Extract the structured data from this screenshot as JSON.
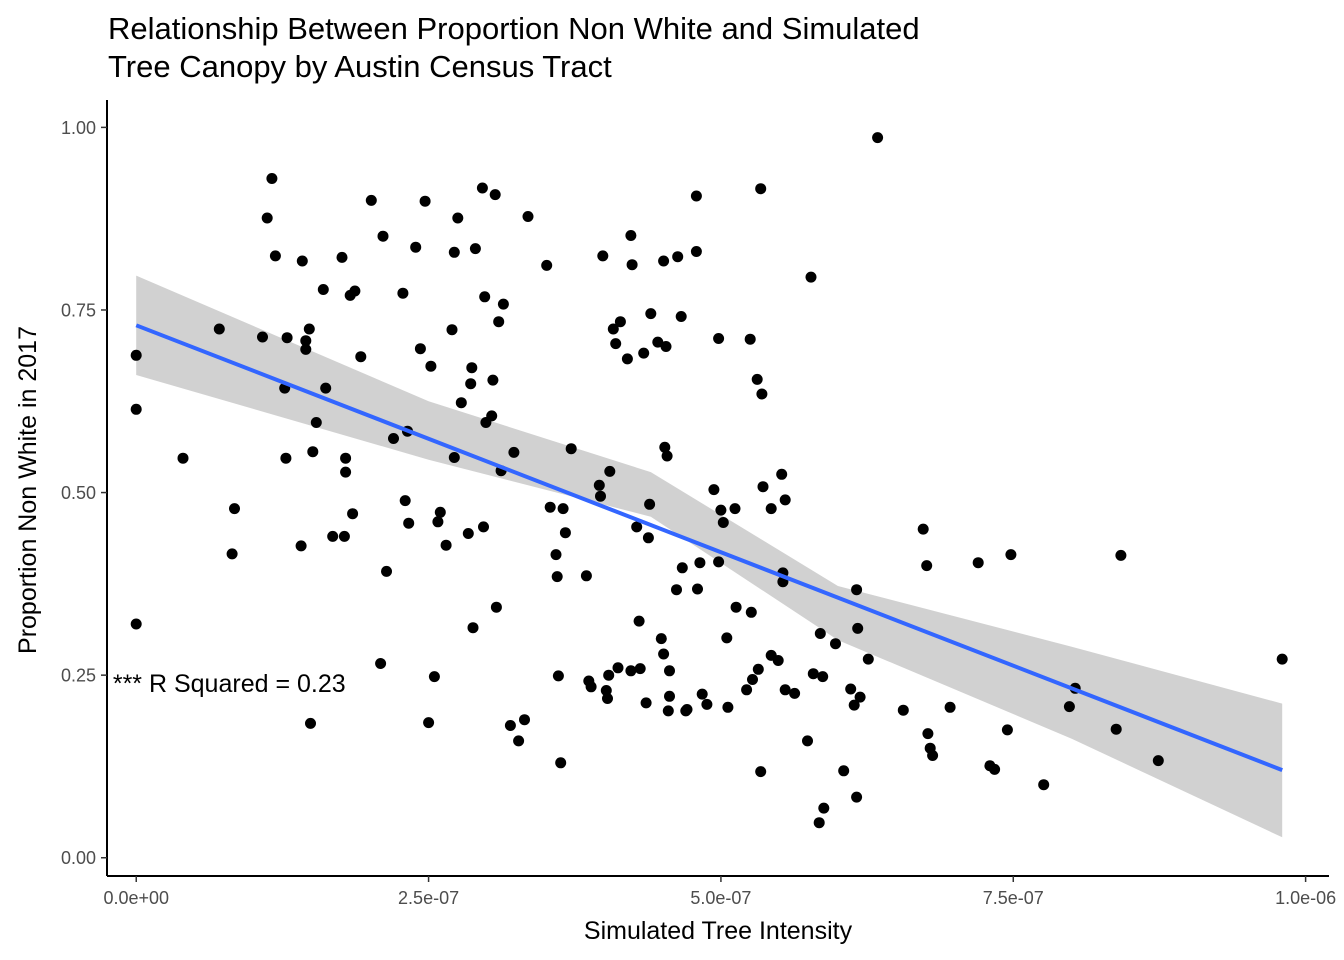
{
  "chart_data": {
    "type": "scatter",
    "title": "Relationship Between Proportion Non White and Simulated Tree Canopy by Austin Census Tract",
    "title_lines": [
      "Relationship Between Proportion Non White and Simulated",
      "Tree Canopy by Austin Census Tract"
    ],
    "xlabel": "Simulated Tree Intensity",
    "ylabel": "Proportion Non White in 2017",
    "xlim": [
      -2.5e-08,
      1.02e-06
    ],
    "ylim": [
      -0.025,
      1.0375
    ],
    "x_ticks": [
      {
        "value": 0,
        "label": "0.0e+00"
      },
      {
        "value": 2.5e-07,
        "label": "2.5e-07"
      },
      {
        "value": 5e-07,
        "label": "5.0e-07"
      },
      {
        "value": 7.5e-07,
        "label": "7.5e-07"
      },
      {
        "value": 1e-06,
        "label": "1.0e-06"
      }
    ],
    "y_ticks": [
      {
        "value": 0,
        "label": "0.00"
      },
      {
        "value": 0.25,
        "label": "0.25"
      },
      {
        "value": 0.5,
        "label": "0.50"
      },
      {
        "value": 0.75,
        "label": "0.75"
      },
      {
        "value": 1.0,
        "label": "1.00"
      }
    ],
    "grid": false,
    "annotation": {
      "text": "*** R Squared = 0.23",
      "x": -2e-08,
      "y": 0.239
    },
    "point_color": "#000000",
    "fit_line": {
      "color": "#3366FF",
      "x": [
        0,
        9.8e-07
      ],
      "y": [
        0.729,
        0.12
      ]
    },
    "confidence_band": {
      "color": "#CCCCCC",
      "x": [
        0,
        2.5e-07,
        4.4e-07,
        6e-07,
        8e-07,
        9.8e-07
      ],
      "upper": [
        0.797,
        0.625,
        0.528,
        0.372,
        0.289,
        0.211
      ],
      "lower": [
        0.661,
        0.545,
        0.467,
        0.298,
        0.163,
        0.028
      ]
    },
    "points": [
      [
        0,
        0.688
      ],
      [
        0,
        0.614
      ],
      [
        0,
        0.32
      ],
      [
        4e-08,
        0.547
      ],
      [
        7.1e-08,
        0.724
      ],
      [
        8.2e-08,
        0.416
      ],
      [
        8.4e-08,
        0.478
      ],
      [
        1.08e-07,
        0.713
      ],
      [
        1.12e-07,
        0.876
      ],
      [
        1.16e-07,
        0.93
      ],
      [
        1.19e-07,
        0.824
      ],
      [
        1.27e-07,
        0.643
      ],
      [
        1.28e-07,
        0.547
      ],
      [
        1.29e-07,
        0.712
      ],
      [
        1.41e-07,
        0.427
      ],
      [
        1.42e-07,
        0.817
      ],
      [
        1.45e-07,
        0.708
      ],
      [
        1.45e-07,
        0.696
      ],
      [
        1.48e-07,
        0.724
      ],
      [
        1.49e-07,
        0.184
      ],
      [
        1.51e-07,
        0.556
      ],
      [
        1.54e-07,
        0.596
      ],
      [
        1.6e-07,
        0.778
      ],
      [
        1.62e-07,
        0.643
      ],
      [
        1.68e-07,
        0.44
      ],
      [
        1.76e-07,
        0.822
      ],
      [
        1.78e-07,
        0.44
      ],
      [
        1.79e-07,
        0.528
      ],
      [
        1.79e-07,
        0.547
      ],
      [
        1.83e-07,
        0.77
      ],
      [
        1.85e-07,
        0.471
      ],
      [
        1.87e-07,
        0.776
      ],
      [
        1.92e-07,
        0.686
      ],
      [
        2.01e-07,
        0.9
      ],
      [
        2.09e-07,
        0.266
      ],
      [
        2.11e-07,
        0.851
      ],
      [
        2.14e-07,
        0.392
      ],
      [
        2.2e-07,
        0.574
      ],
      [
        2.28e-07,
        0.773
      ],
      [
        2.3e-07,
        0.489
      ],
      [
        2.32e-07,
        0.584
      ],
      [
        2.33e-07,
        0.458
      ],
      [
        2.39e-07,
        0.836
      ],
      [
        2.43e-07,
        0.697
      ],
      [
        2.47e-07,
        0.899
      ],
      [
        2.5e-07,
        0.185
      ],
      [
        2.52e-07,
        0.673
      ],
      [
        2.55e-07,
        0.248
      ],
      [
        2.58e-07,
        0.46
      ],
      [
        2.6e-07,
        0.473
      ],
      [
        2.65e-07,
        0.428
      ],
      [
        2.7e-07,
        0.723
      ],
      [
        2.72e-07,
        0.548
      ],
      [
        2.72e-07,
        0.829
      ],
      [
        2.75e-07,
        0.876
      ],
      [
        2.78e-07,
        0.623
      ],
      [
        2.84e-07,
        0.444
      ],
      [
        2.86e-07,
        0.649
      ],
      [
        2.87e-07,
        0.671
      ],
      [
        2.88e-07,
        0.315
      ],
      [
        2.9e-07,
        0.834
      ],
      [
        2.96e-07,
        0.917
      ],
      [
        2.97e-07,
        0.453
      ],
      [
        2.98e-07,
        0.768
      ],
      [
        2.99e-07,
        0.596
      ],
      [
        3.04e-07,
        0.605
      ],
      [
        3.05e-07,
        0.654
      ],
      [
        3.07e-07,
        0.908
      ],
      [
        3.08e-07,
        0.343
      ],
      [
        3.1e-07,
        0.734
      ],
      [
        3.12e-07,
        0.53
      ],
      [
        3.14e-07,
        0.758
      ],
      [
        3.2e-07,
        0.181
      ],
      [
        3.23e-07,
        0.555
      ],
      [
        3.27e-07,
        0.16
      ],
      [
        3.32e-07,
        0.189
      ],
      [
        3.35e-07,
        0.878
      ],
      [
        3.51e-07,
        0.811
      ],
      [
        3.54e-07,
        0.48
      ],
      [
        3.59e-07,
        0.415
      ],
      [
        3.6e-07,
        0.385
      ],
      [
        3.61e-07,
        0.249
      ],
      [
        3.63e-07,
        0.13
      ],
      [
        3.65e-07,
        0.478
      ],
      [
        3.67e-07,
        0.445
      ],
      [
        3.72e-07,
        0.56
      ],
      [
        3.85e-07,
        0.386
      ],
      [
        3.87e-07,
        0.242
      ],
      [
        3.89e-07,
        0.234
      ],
      [
        3.96e-07,
        0.51
      ],
      [
        3.97e-07,
        0.495
      ],
      [
        3.99e-07,
        0.824
      ],
      [
        4.02e-07,
        0.229
      ],
      [
        4.03e-07,
        0.218
      ],
      [
        4.04e-07,
        0.25
      ],
      [
        4.05e-07,
        0.529
      ],
      [
        4.08e-07,
        0.724
      ],
      [
        4.1e-07,
        0.704
      ],
      [
        4.12e-07,
        0.26
      ],
      [
        4.14e-07,
        0.734
      ],
      [
        4.2e-07,
        0.683
      ],
      [
        4.23e-07,
        0.256
      ],
      [
        4.23e-07,
        0.852
      ],
      [
        4.24e-07,
        0.812
      ],
      [
        4.28e-07,
        0.453
      ],
      [
        4.3e-07,
        0.324
      ],
      [
        4.31e-07,
        0.259
      ],
      [
        4.34e-07,
        0.691
      ],
      [
        4.36e-07,
        0.212
      ],
      [
        4.38e-07,
        0.438
      ],
      [
        4.39e-07,
        0.484
      ],
      [
        4.4e-07,
        0.745
      ],
      [
        4.46e-07,
        0.706
      ],
      [
        4.49e-07,
        0.3
      ],
      [
        4.51e-07,
        0.817
      ],
      [
        4.51e-07,
        0.279
      ],
      [
        4.52e-07,
        0.562
      ],
      [
        4.53e-07,
        0.7
      ],
      [
        4.54e-07,
        0.55
      ],
      [
        4.55e-07,
        0.201
      ],
      [
        4.56e-07,
        0.221
      ],
      [
        4.56e-07,
        0.256
      ],
      [
        4.62e-07,
        0.367
      ],
      [
        4.63e-07,
        0.823
      ],
      [
        4.66e-07,
        0.741
      ],
      [
        4.67e-07,
        0.397
      ],
      [
        4.7e-07,
        0.201
      ],
      [
        4.71e-07,
        0.203
      ],
      [
        4.79e-07,
        0.906
      ],
      [
        4.79e-07,
        0.83
      ],
      [
        4.8e-07,
        0.368
      ],
      [
        4.82e-07,
        0.404
      ],
      [
        4.84e-07,
        0.224
      ],
      [
        4.88e-07,
        0.21
      ],
      [
        4.94e-07,
        0.504
      ],
      [
        4.98e-07,
        0.711
      ],
      [
        4.98e-07,
        0.405
      ],
      [
        5e-07,
        0.476
      ],
      [
        5.02e-07,
        0.459
      ],
      [
        5.05e-07,
        0.301
      ],
      [
        5.06e-07,
        0.206
      ],
      [
        5.12e-07,
        0.478
      ],
      [
        5.13e-07,
        0.343
      ],
      [
        5.22e-07,
        0.23
      ],
      [
        5.25e-07,
        0.71
      ],
      [
        5.26e-07,
        0.336
      ],
      [
        5.27e-07,
        0.244
      ],
      [
        5.31e-07,
        0.655
      ],
      [
        5.32e-07,
        0.258
      ],
      [
        5.34e-07,
        0.916
      ],
      [
        5.34e-07,
        0.118
      ],
      [
        5.35e-07,
        0.635
      ],
      [
        5.36e-07,
        0.508
      ],
      [
        5.43e-07,
        0.478
      ],
      [
        5.43e-07,
        0.277
      ],
      [
        5.49e-07,
        0.27
      ],
      [
        5.52e-07,
        0.525
      ],
      [
        5.53e-07,
        0.39
      ],
      [
        5.53e-07,
        0.378
      ],
      [
        5.55e-07,
        0.49
      ],
      [
        5.55e-07,
        0.23
      ],
      [
        5.63e-07,
        0.225
      ],
      [
        5.74e-07,
        0.16
      ],
      [
        5.77e-07,
        0.795
      ],
      [
        5.79e-07,
        0.252
      ],
      [
        5.84e-07,
        0.048
      ],
      [
        5.85e-07,
        0.307
      ],
      [
        5.87e-07,
        0.248
      ],
      [
        5.88e-07,
        0.068
      ],
      [
        5.98e-07,
        0.293
      ],
      [
        6.05e-07,
        0.119
      ],
      [
        6.11e-07,
        0.231
      ],
      [
        6.14e-07,
        0.209
      ],
      [
        6.16e-07,
        0.367
      ],
      [
        6.16e-07,
        0.083
      ],
      [
        6.17e-07,
        0.314
      ],
      [
        6.19e-07,
        0.22
      ],
      [
        6.26e-07,
        0.272
      ],
      [
        6.34e-07,
        0.986
      ],
      [
        6.56e-07,
        0.202
      ],
      [
        6.73e-07,
        0.45
      ],
      [
        6.76e-07,
        0.4
      ],
      [
        6.77e-07,
        0.17
      ],
      [
        6.79e-07,
        0.15
      ],
      [
        6.81e-07,
        0.14
      ],
      [
        6.96e-07,
        0.206
      ],
      [
        7.2e-07,
        0.404
      ],
      [
        7.3e-07,
        0.126
      ],
      [
        7.34e-07,
        0.121
      ],
      [
        7.45e-07,
        0.175
      ],
      [
        7.48e-07,
        0.415
      ],
      [
        7.76e-07,
        0.1
      ],
      [
        7.98e-07,
        0.207
      ],
      [
        8.03e-07,
        0.232
      ],
      [
        8.38e-07,
        0.176
      ],
      [
        8.42e-07,
        0.414
      ],
      [
        8.74e-07,
        0.133
      ],
      [
        9.8e-07,
        0.272
      ]
    ]
  }
}
